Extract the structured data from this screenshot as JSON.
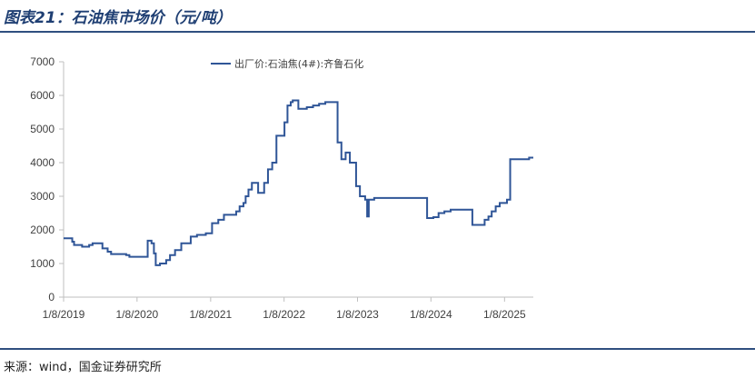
{
  "figure": {
    "title": "图表21：石油焦市场价（元/吨）",
    "source": "来源：wind，国金证券研究所"
  },
  "colors": {
    "series": "#2f5597",
    "axis": "#bfbfbf",
    "rule": "#2f4f7f"
  },
  "chart_data": {
    "type": "line",
    "title": "",
    "xlabel": "",
    "ylabel": "",
    "ylim": [
      0,
      7000
    ],
    "yticks": [
      0,
      1000,
      2000,
      3000,
      4000,
      5000,
      6000,
      7000
    ],
    "xlim": [
      "2019-01-08",
      "2025-05-31"
    ],
    "xticks": [
      "1/8/2019",
      "1/8/2020",
      "1/8/2021",
      "1/8/2022",
      "1/8/2023",
      "1/8/2024",
      "1/8/2025"
    ],
    "grid": false,
    "legend": "top-center",
    "series": [
      {
        "name": "出厂价:石油焦(4#):齐鲁石化",
        "step": true,
        "points": [
          [
            "2019-01-08",
            1750
          ],
          [
            "2019-02-20",
            1650
          ],
          [
            "2019-03-01",
            1550
          ],
          [
            "2019-04-10",
            1500
          ],
          [
            "2019-05-15",
            1550
          ],
          [
            "2019-06-01",
            1600
          ],
          [
            "2019-07-20",
            1450
          ],
          [
            "2019-08-15",
            1350
          ],
          [
            "2019-09-01",
            1280
          ],
          [
            "2019-11-15",
            1250
          ],
          [
            "2019-12-01",
            1200
          ],
          [
            "2020-02-15",
            1200
          ],
          [
            "2020-03-01",
            1680
          ],
          [
            "2020-03-20",
            1600
          ],
          [
            "2020-04-01",
            1300
          ],
          [
            "2020-04-10",
            950
          ],
          [
            "2020-05-01",
            1000
          ],
          [
            "2020-06-01",
            1100
          ],
          [
            "2020-06-20",
            1250
          ],
          [
            "2020-07-15",
            1400
          ],
          [
            "2020-08-15",
            1600
          ],
          [
            "2020-10-01",
            1800
          ],
          [
            "2020-11-01",
            1850
          ],
          [
            "2020-12-15",
            1900
          ],
          [
            "2021-01-15",
            2200
          ],
          [
            "2021-02-15",
            2300
          ],
          [
            "2021-03-15",
            2450
          ],
          [
            "2021-05-15",
            2550
          ],
          [
            "2021-06-01",
            2700
          ],
          [
            "2021-06-20",
            2800
          ],
          [
            "2021-07-01",
            3000
          ],
          [
            "2021-07-15",
            3200
          ],
          [
            "2021-08-01",
            3400
          ],
          [
            "2021-09-01",
            3100
          ],
          [
            "2021-10-01",
            3400
          ],
          [
            "2021-10-20",
            3800
          ],
          [
            "2021-11-10",
            4000
          ],
          [
            "2021-12-01",
            4800
          ],
          [
            "2022-01-10",
            5200
          ],
          [
            "2022-01-25",
            5700
          ],
          [
            "2022-02-10",
            5800
          ],
          [
            "2022-02-20",
            5850
          ],
          [
            "2022-03-20",
            5600
          ],
          [
            "2022-05-01",
            5650
          ],
          [
            "2022-06-01",
            5700
          ],
          [
            "2022-07-01",
            5750
          ],
          [
            "2022-08-01",
            5800
          ],
          [
            "2022-09-15",
            5800
          ],
          [
            "2022-10-01",
            4600
          ],
          [
            "2022-10-20",
            4100
          ],
          [
            "2022-11-10",
            4300
          ],
          [
            "2022-12-01",
            4000
          ],
          [
            "2023-01-01",
            3300
          ],
          [
            "2023-01-20",
            3000
          ],
          [
            "2023-02-15",
            2900
          ],
          [
            "2023-02-25",
            2400
          ],
          [
            "2023-03-05",
            2900
          ],
          [
            "2023-04-01",
            2950
          ],
          [
            "2023-07-01",
            2950
          ],
          [
            "2023-12-15",
            2950
          ],
          [
            "2023-12-20",
            2350
          ],
          [
            "2024-01-20",
            2380
          ],
          [
            "2024-02-15",
            2500
          ],
          [
            "2024-03-15",
            2550
          ],
          [
            "2024-04-15",
            2600
          ],
          [
            "2024-07-15",
            2600
          ],
          [
            "2024-08-01",
            2150
          ],
          [
            "2024-09-15",
            2150
          ],
          [
            "2024-10-01",
            2300
          ],
          [
            "2024-10-20",
            2400
          ],
          [
            "2024-11-05",
            2550
          ],
          [
            "2024-11-25",
            2700
          ],
          [
            "2024-12-15",
            2800
          ],
          [
            "2025-01-20",
            2900
          ],
          [
            "2025-02-05",
            4100
          ],
          [
            "2025-04-15",
            4100
          ],
          [
            "2025-05-10",
            4150
          ],
          [
            "2025-05-31",
            4150
          ]
        ]
      }
    ]
  }
}
